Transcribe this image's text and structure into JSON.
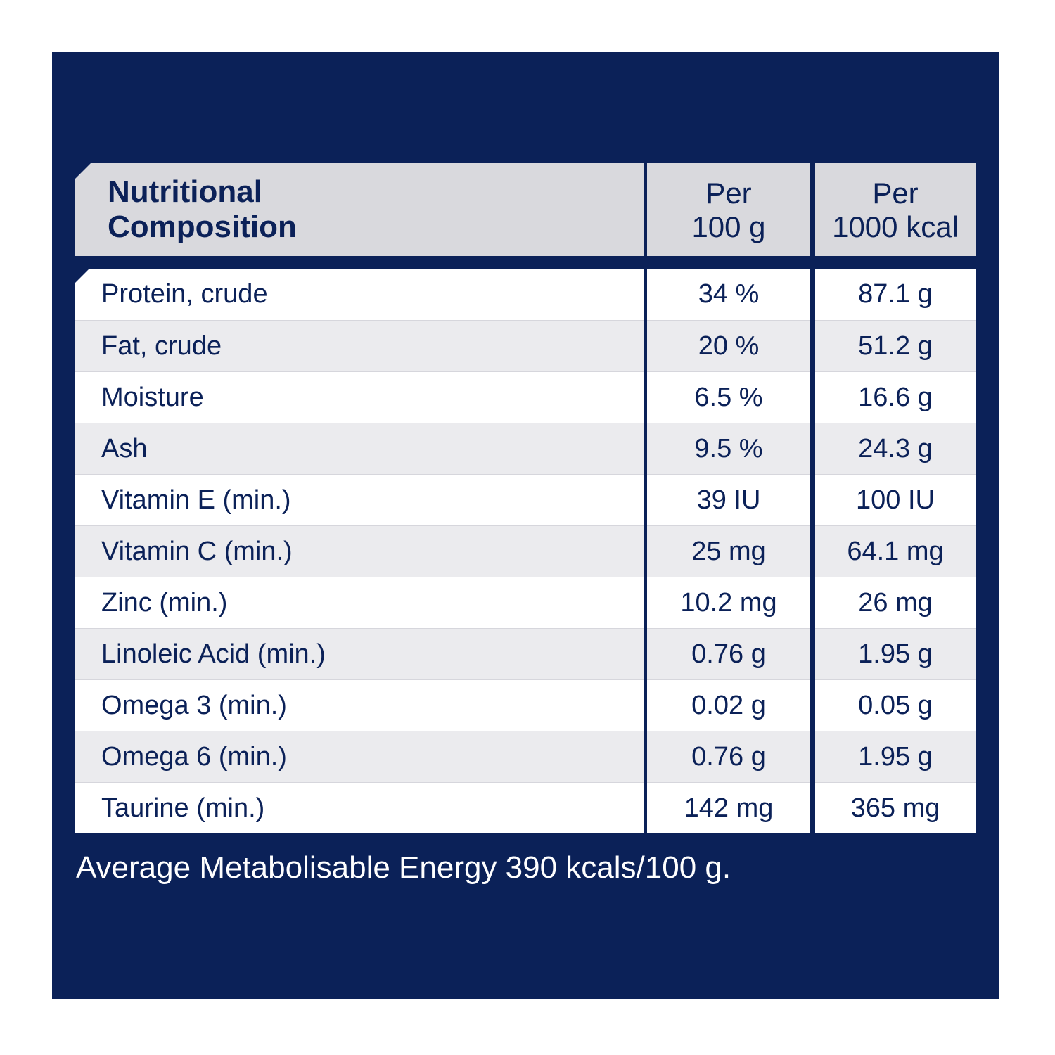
{
  "colors": {
    "panel_background": "#0b2158",
    "header_background": "#d9d9dd",
    "row_white": "#ffffff",
    "row_grey": "#ebebee",
    "text_dark": "#0b2158",
    "text_light": "#ffffff"
  },
  "table": {
    "header": {
      "col1_line1": "Nutritional",
      "col1_line2": "Composition",
      "col2_line1": "Per",
      "col2_line2": "100 g",
      "col3_line1": "Per",
      "col3_line2": "1000 kcal"
    },
    "rows": [
      {
        "name": "Protein, crude",
        "per_100g": "34 %",
        "per_1000kcal": "87.1 g"
      },
      {
        "name": "Fat, crude",
        "per_100g": "20 %",
        "per_1000kcal": "51.2 g"
      },
      {
        "name": "Moisture",
        "per_100g": "6.5 %",
        "per_1000kcal": "16.6 g"
      },
      {
        "name": "Ash",
        "per_100g": "9.5 %",
        "per_1000kcal": "24.3 g"
      },
      {
        "name": "Vitamin E (min.)",
        "per_100g": "39 IU",
        "per_1000kcal": "100 IU"
      },
      {
        "name": "Vitamin C (min.)",
        "per_100g": "25 mg",
        "per_1000kcal": "64.1 mg"
      },
      {
        "name": "Zinc (min.)",
        "per_100g": "10.2 mg",
        "per_1000kcal": "26 mg"
      },
      {
        "name": "Linoleic Acid (min.)",
        "per_100g": "0.76 g",
        "per_1000kcal": "1.95 g"
      },
      {
        "name": "Omega 3 (min.)",
        "per_100g": "0.02 g",
        "per_1000kcal": "0.05 g"
      },
      {
        "name": "Omega 6 (min.)",
        "per_100g": "0.76 g",
        "per_1000kcal": "1.95 g"
      },
      {
        "name": "Taurine (min.)",
        "per_100g": "142 mg",
        "per_1000kcal": "365 mg"
      }
    ]
  },
  "footnote": "Average Metabolisable Energy 390 kcals/100 g."
}
